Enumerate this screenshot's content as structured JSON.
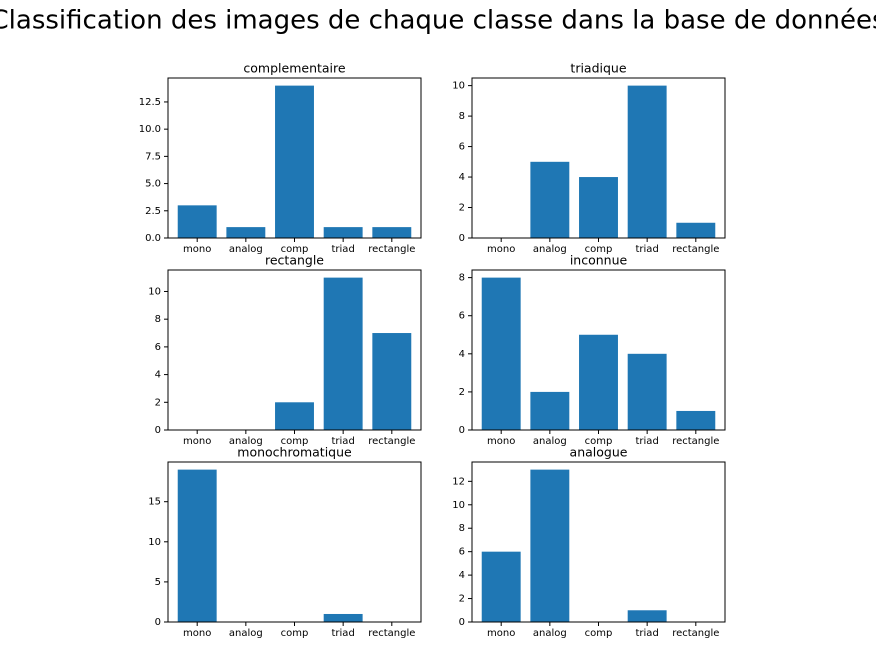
{
  "title": "Classification des images de chaque classe dans la base de données",
  "chart_data": [
    {
      "type": "bar",
      "title": "complementaire",
      "categories": [
        "mono",
        "analog",
        "comp",
        "triad",
        "rectangle"
      ],
      "values": [
        3,
        1,
        14,
        1,
        1
      ],
      "color": "#1f77b4",
      "ylim": [
        0,
        14.7
      ],
      "yticks": [
        {
          "value": 0,
          "label": "0.0"
        },
        2.5,
        {
          "value": 5,
          "label": "5.0"
        },
        7.5,
        {
          "value": 10,
          "label": "10.0"
        },
        12.5
      ]
    },
    {
      "type": "bar",
      "title": "triadique",
      "categories": [
        "mono",
        "analog",
        "comp",
        "triad",
        "rectangle"
      ],
      "values": [
        0,
        5,
        4,
        10,
        1
      ],
      "color": "#1f77b4",
      "ylim": [
        0,
        10.5
      ],
      "yticks": [
        0,
        2,
        4,
        6,
        8,
        10
      ]
    },
    {
      "type": "bar",
      "title": "rectangle",
      "categories": [
        "mono",
        "analog",
        "comp",
        "triad",
        "rectangle"
      ],
      "values": [
        0,
        0,
        2,
        11,
        7
      ],
      "color": "#1f77b4",
      "ylim": [
        0,
        11.55
      ],
      "yticks": [
        0,
        2,
        4,
        6,
        8,
        10
      ]
    },
    {
      "type": "bar",
      "title": "inconnue",
      "categories": [
        "mono",
        "analog",
        "comp",
        "triad",
        "rectangle"
      ],
      "values": [
        8,
        2,
        5,
        4,
        1
      ],
      "color": "#1f77b4",
      "ylim": [
        0,
        8.4
      ],
      "yticks": [
        0,
        2,
        4,
        6,
        8
      ]
    },
    {
      "type": "bar",
      "title": "monochromatique",
      "categories": [
        "mono",
        "analog",
        "comp",
        "triad",
        "rectangle"
      ],
      "values": [
        19,
        0,
        0,
        1,
        0
      ],
      "color": "#1f77b4",
      "ylim": [
        0,
        19.95
      ],
      "yticks": [
        0,
        5,
        10,
        15
      ]
    },
    {
      "type": "bar",
      "title": "analogue",
      "categories": [
        "mono",
        "analog",
        "comp",
        "triad",
        "rectangle"
      ],
      "values": [
        6,
        13,
        0,
        1,
        0
      ],
      "color": "#1f77b4",
      "ylim": [
        0,
        13.65
      ],
      "yticks": [
        0,
        2,
        4,
        6,
        8,
        10,
        12
      ]
    }
  ]
}
